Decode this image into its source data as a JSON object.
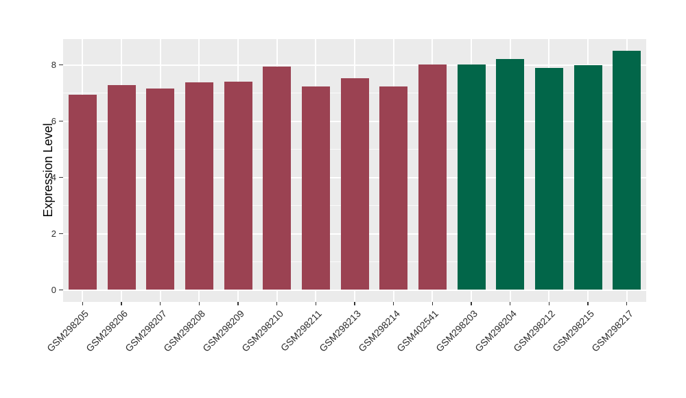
{
  "figure": {
    "background_color": "#FFFFFF"
  },
  "chart_data": {
    "type": "bar",
    "title": "",
    "xlabel": "",
    "ylabel": "Expression Level",
    "categories": [
      "GSM298205",
      "GSM298206",
      "GSM298207",
      "GSM298208",
      "GSM298209",
      "GSM298210",
      "GSM298211",
      "GSM298213",
      "GSM298214",
      "GSM402541",
      "GSM298203",
      "GSM298204",
      "GSM298212",
      "GSM298215",
      "GSM298217"
    ],
    "values": [
      6.93,
      7.29,
      7.17,
      7.38,
      7.41,
      7.94,
      7.23,
      7.52,
      7.24,
      8.02,
      8.01,
      8.21,
      7.88,
      7.98,
      8.49
    ],
    "bar_colors": [
      "#9B4252",
      "#9B4252",
      "#9B4252",
      "#9B4252",
      "#9B4252",
      "#9B4252",
      "#9B4252",
      "#9B4252",
      "#9B4252",
      "#9B4252",
      "#026649",
      "#026649",
      "#026649",
      "#026649",
      "#026649"
    ],
    "color_palette": {
      "maroon_group": "#9B4252",
      "green_group": "#026649"
    },
    "yticks": [
      0,
      2,
      4,
      6,
      8
    ],
    "ytick_labels": [
      "0",
      "2",
      "4",
      "6",
      "8"
    ],
    "ylim": [
      0,
      8.92
    ],
    "grid": true,
    "legend": "none",
    "panel_background": "#EBEBEB",
    "gridline_color": "#FFFFFF",
    "tick_color": "#333333",
    "x_label_rotation_deg": 45
  }
}
